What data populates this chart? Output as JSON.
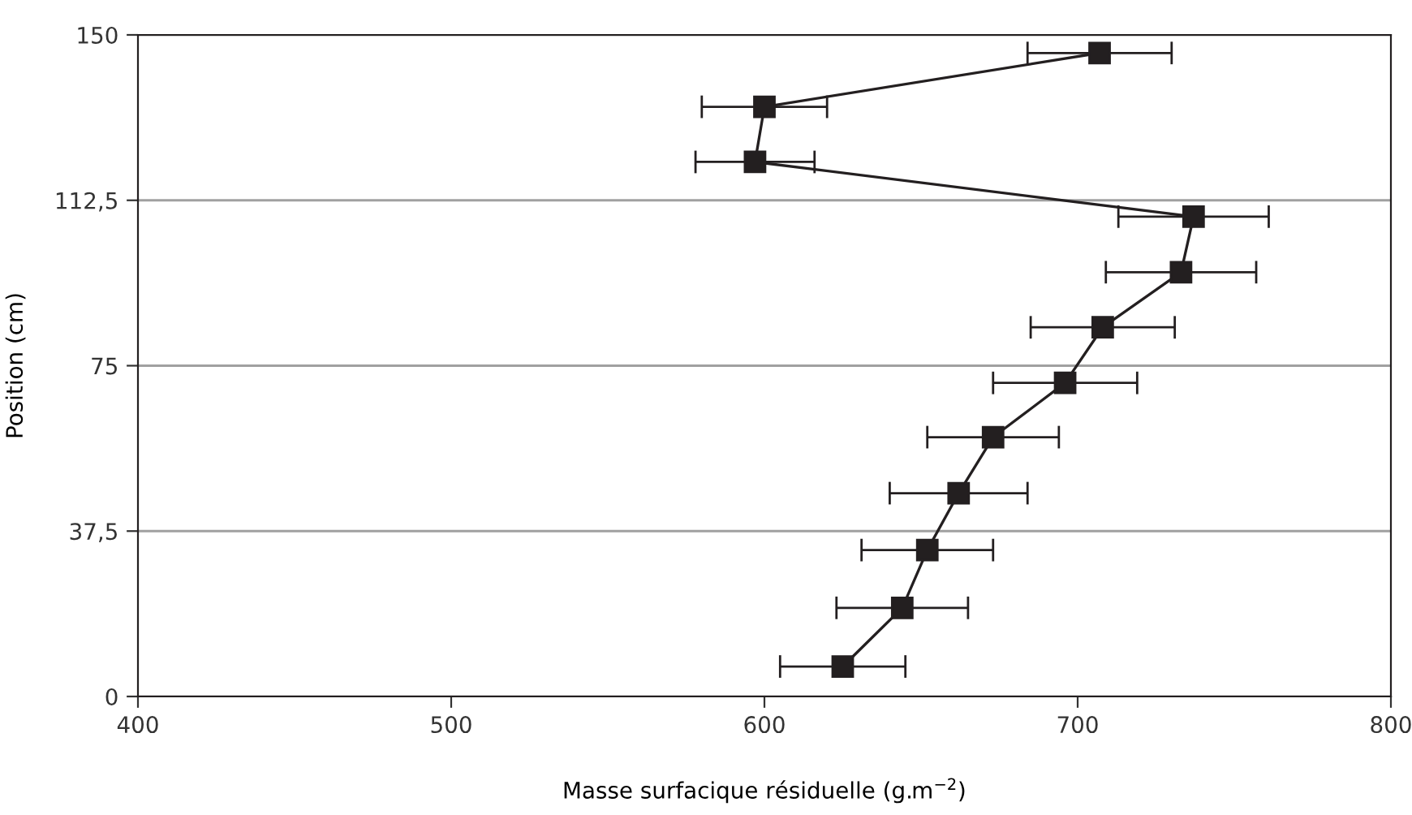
{
  "chart_data": {
    "type": "line",
    "xlabel": "Masse surfacique résiduelle (g.m$^{−2}$)",
    "ylabel": "Position (cm)",
    "x": [
      625,
      644,
      652,
      662,
      673,
      696,
      708,
      733,
      737,
      597,
      600,
      707
    ],
    "values": [
      6.8,
      20.1,
      33.2,
      46.1,
      58.8,
      71.1,
      83.7,
      96.2,
      108.8,
      121.2,
      133.7,
      145.9
    ],
    "xerrors": [
      20,
      21,
      21,
      22,
      21,
      23,
      23,
      24,
      24,
      19,
      20,
      23
    ],
    "color": "#231f20",
    "marker": "square",
    "line_style": "solid",
    "xlim": [
      400,
      800
    ],
    "xticks": [
      400,
      500,
      600,
      700,
      800
    ],
    "ylim": [
      0,
      150
    ],
    "yticks": [
      0,
      {
        "value": 37.5,
        "label": "37,5"
      },
      75,
      {
        "value": 112.5,
        "label": "112,5"
      },
      150
    ],
    "grid": "y",
    "legend": false
  }
}
